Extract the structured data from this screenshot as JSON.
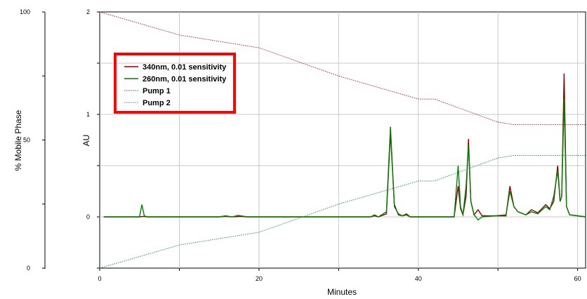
{
  "chart_data": {
    "type": "line",
    "xlabel": "Minutes",
    "ylabel": "AU",
    "y2label": "% Mobile Phase",
    "xlim": [
      0,
      61
    ],
    "ylim": [
      -0.5,
      2
    ],
    "y2lim": [
      0,
      100
    ],
    "x_ticks": [
      "0",
      "20",
      "40",
      "60"
    ],
    "y_ticks": [
      "0",
      "1",
      "2"
    ],
    "y2_ticks": [
      "0",
      "50",
      "100"
    ],
    "grid": true,
    "legend_position": "top-left",
    "legend_highlight_color": "#ff0000",
    "series": [
      {
        "name": "340nm, 0.01 sensitivity",
        "axis": "AU",
        "style": "solid",
        "color": "#8b0000",
        "points": [
          [
            0.5,
            0
          ],
          [
            5,
            0
          ],
          [
            5.5,
            0.005
          ],
          [
            6,
            0
          ],
          [
            15,
            0
          ],
          [
            15.8,
            0.005
          ],
          [
            16.6,
            0
          ],
          [
            17.6,
            0.005
          ],
          [
            18.5,
            0
          ],
          [
            34,
            0
          ],
          [
            34.5,
            0.01
          ],
          [
            35,
            0
          ],
          [
            36,
            0.03
          ],
          [
            36.5,
            0.82
          ],
          [
            37,
            0.12
          ],
          [
            37.5,
            0.02
          ],
          [
            38,
            0.01
          ],
          [
            38.5,
            0.02
          ],
          [
            39,
            0
          ],
          [
            44.5,
            0
          ],
          [
            45,
            0.3
          ],
          [
            45.3,
            0.08
          ],
          [
            45.6,
            0.02
          ],
          [
            46,
            0.2
          ],
          [
            46.3,
            0.76
          ],
          [
            46.6,
            0.15
          ],
          [
            47,
            0.02
          ],
          [
            47.5,
            0.07
          ],
          [
            48,
            0.01
          ],
          [
            51,
            0.01
          ],
          [
            51.5,
            0.3
          ],
          [
            52,
            0.1
          ],
          [
            52.5,
            0.05
          ],
          [
            53.5,
            0.02
          ],
          [
            54.2,
            0.07
          ],
          [
            55,
            0.04
          ],
          [
            56,
            0.12
          ],
          [
            56.5,
            0.08
          ],
          [
            57,
            0.15
          ],
          [
            57.5,
            0.5
          ],
          [
            57.8,
            0.15
          ],
          [
            58,
            0.2
          ],
          [
            58.3,
            1.4
          ],
          [
            58.6,
            0.1
          ],
          [
            59,
            0.02
          ],
          [
            60,
            0.01
          ],
          [
            61,
            0
          ]
        ]
      },
      {
        "name": "260nm, 0.01 sensitivity",
        "axis": "AU",
        "style": "solid",
        "color": "#008000",
        "points": [
          [
            0.5,
            0
          ],
          [
            5,
            0
          ],
          [
            5.3,
            0.12
          ],
          [
            5.6,
            0.01
          ],
          [
            6,
            0
          ],
          [
            15,
            0
          ],
          [
            15.8,
            0.01
          ],
          [
            16.6,
            0
          ],
          [
            17.4,
            0.015
          ],
          [
            18.5,
            0
          ],
          [
            34,
            0
          ],
          [
            34.5,
            0.02
          ],
          [
            35,
            0
          ],
          [
            36,
            0.05
          ],
          [
            36.5,
            0.88
          ],
          [
            37,
            0.1
          ],
          [
            37.5,
            0.03
          ],
          [
            38,
            0.01
          ],
          [
            38.5,
            0.03
          ],
          [
            39,
            0
          ],
          [
            44.5,
            0
          ],
          [
            45,
            0.5
          ],
          [
            45.3,
            0.1
          ],
          [
            45.6,
            0.02
          ],
          [
            46,
            0.3
          ],
          [
            46.3,
            0.7
          ],
          [
            46.6,
            0.15
          ],
          [
            47,
            0.02
          ],
          [
            47.5,
            -0.03
          ],
          [
            48,
            0
          ],
          [
            51,
            0.02
          ],
          [
            51.5,
            0.25
          ],
          [
            52,
            0.1
          ],
          [
            52.5,
            0.05
          ],
          [
            53.5,
            0.02
          ],
          [
            54.2,
            0.05
          ],
          [
            55,
            0.03
          ],
          [
            56,
            0.1
          ],
          [
            56.5,
            0.07
          ],
          [
            57,
            0.2
          ],
          [
            57.5,
            0.45
          ],
          [
            57.8,
            0.15
          ],
          [
            58,
            0.2
          ],
          [
            58.3,
            1.15
          ],
          [
            58.6,
            0.1
          ],
          [
            59,
            0.02
          ],
          [
            60,
            0.01
          ],
          [
            61,
            0
          ]
        ]
      },
      {
        "name": "Pump 1",
        "axis": "% Mobile Phase",
        "style": "dotted",
        "color": "#a52a2a",
        "points": [
          [
            0,
            100
          ],
          [
            10,
            91
          ],
          [
            20,
            86
          ],
          [
            30,
            75
          ],
          [
            40,
            66
          ],
          [
            42,
            66
          ],
          [
            50,
            57
          ],
          [
            52,
            56
          ],
          [
            61,
            56
          ]
        ]
      },
      {
        "name": "Pump 2",
        "axis": "% Mobile Phase",
        "style": "dotted",
        "color": "#2e8b57",
        "points": [
          [
            0,
            0
          ],
          [
            10,
            9
          ],
          [
            20,
            14
          ],
          [
            30,
            25
          ],
          [
            40,
            34
          ],
          [
            42,
            34
          ],
          [
            50,
            43
          ],
          [
            52,
            44
          ],
          [
            61,
            44
          ]
        ]
      }
    ]
  }
}
